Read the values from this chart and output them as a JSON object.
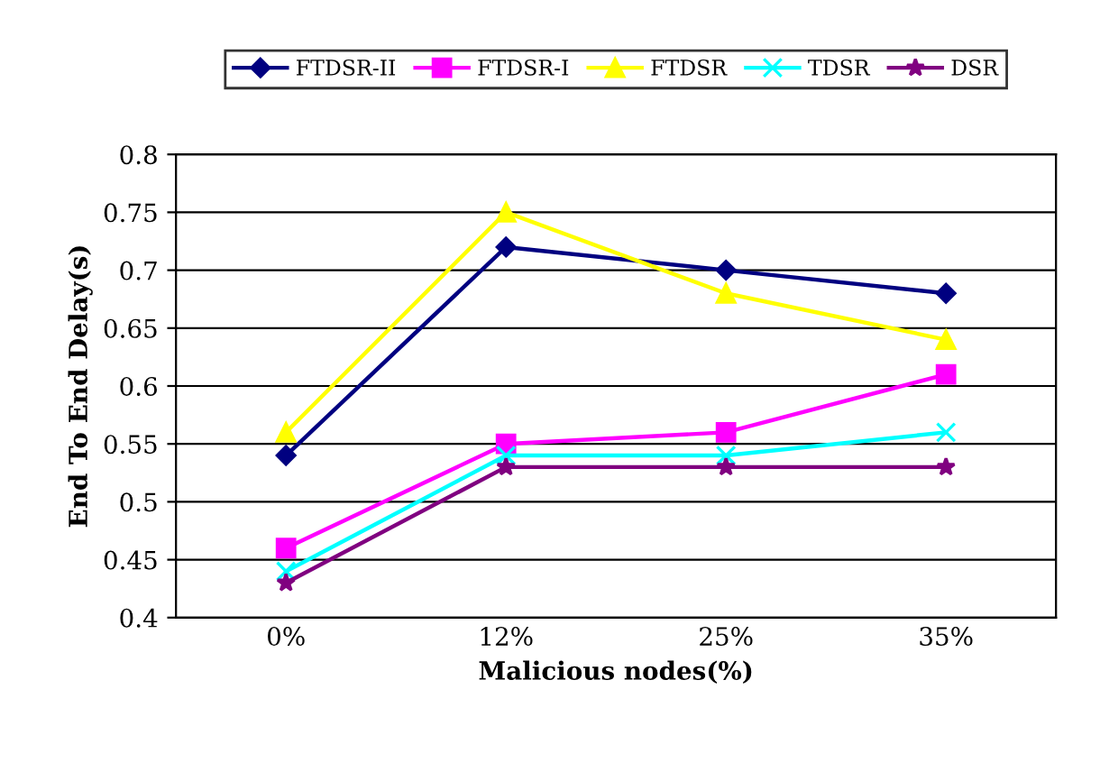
{
  "chart_data": {
    "type": "line",
    "xlabel": "Malicious nodes(%)",
    "ylabel": "End To End Delay(s)",
    "categories": [
      "0%",
      "12%",
      "25%",
      "35%"
    ],
    "series": [
      {
        "name": "FTDSR-II",
        "color": "#000080",
        "marker": "diamond",
        "values": [
          0.54,
          0.72,
          0.7,
          0.68
        ]
      },
      {
        "name": "FTDSR-I",
        "color": "#ff00ff",
        "marker": "square",
        "values": [
          0.46,
          0.55,
          0.56,
          0.61
        ]
      },
      {
        "name": "FTDSR",
        "color": "#ffff00",
        "marker": "triangle",
        "values": [
          0.56,
          0.75,
          0.68,
          0.64
        ]
      },
      {
        "name": "TDSR",
        "color": "#00ffff",
        "marker": "cross",
        "values": [
          0.44,
          0.54,
          0.54,
          0.56
        ]
      },
      {
        "name": "DSR",
        "color": "#800080",
        "marker": "star",
        "values": [
          0.43,
          0.53,
          0.53,
          0.53
        ]
      }
    ],
    "ylim": [
      0.4,
      0.8
    ],
    "yticks": [
      0.4,
      0.45,
      0.5,
      0.55,
      0.6,
      0.65,
      0.7,
      0.75,
      0.8
    ],
    "grid": "y",
    "legend": "top",
    "line_style": "solid"
  }
}
